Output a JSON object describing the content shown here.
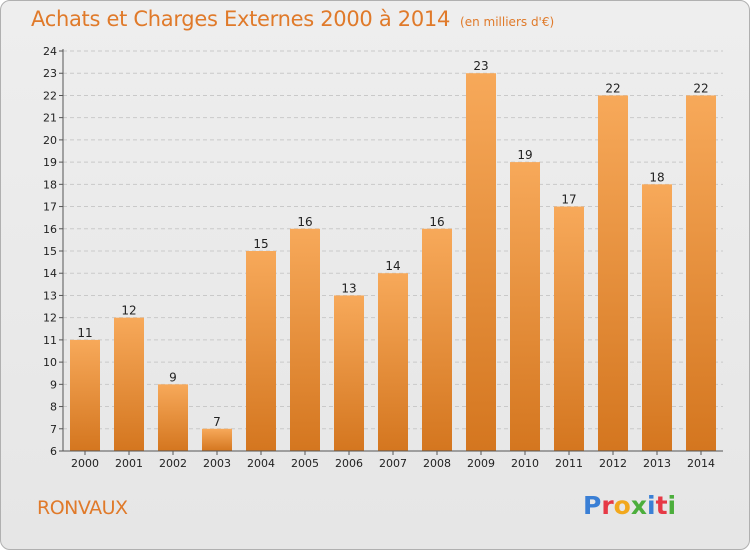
{
  "title": "Achats et Charges Externes 2000 à 2014",
  "subtitle": "(en milliers d'€)",
  "commune": "RONVAUX",
  "logo": {
    "letters": [
      {
        "ch": "P",
        "color": "#3a7fd5"
      },
      {
        "ch": "r",
        "color": "#e63946"
      },
      {
        "ch": "o",
        "color": "#f2a81d"
      },
      {
        "ch": "x",
        "color": "#4cae3c"
      },
      {
        "ch": "i",
        "color": "#3a7fd5"
      },
      {
        "ch": "t",
        "color": "#e63946"
      },
      {
        "ch": "i",
        "color": "#4cae3c"
      }
    ]
  },
  "colors": {
    "accent": "#e07a2a",
    "bar_top": "#f7a95a",
    "bar_bottom": "#d4761f",
    "grid": "#c9c9c9"
  },
  "chart_data": {
    "type": "bar",
    "title": "Achats et Charges Externes 2000 à 2014",
    "subtitle": "(en milliers d'€)",
    "categories": [
      "2000",
      "2001",
      "2002",
      "2003",
      "2004",
      "2005",
      "2006",
      "2007",
      "2008",
      "2009",
      "2010",
      "2011",
      "2012",
      "2013",
      "2014"
    ],
    "values": [
      11,
      12,
      9,
      7,
      15,
      16,
      13,
      14,
      16,
      23,
      19,
      17,
      22,
      18,
      22
    ],
    "ylim": [
      6,
      24
    ],
    "yticks": [
      6,
      7,
      8,
      9,
      10,
      11,
      12,
      13,
      14,
      15,
      16,
      17,
      18,
      19,
      20,
      21,
      22,
      23,
      24
    ],
    "xlabel": "",
    "ylabel": "",
    "grid": "horizontal",
    "legend": "none"
  }
}
